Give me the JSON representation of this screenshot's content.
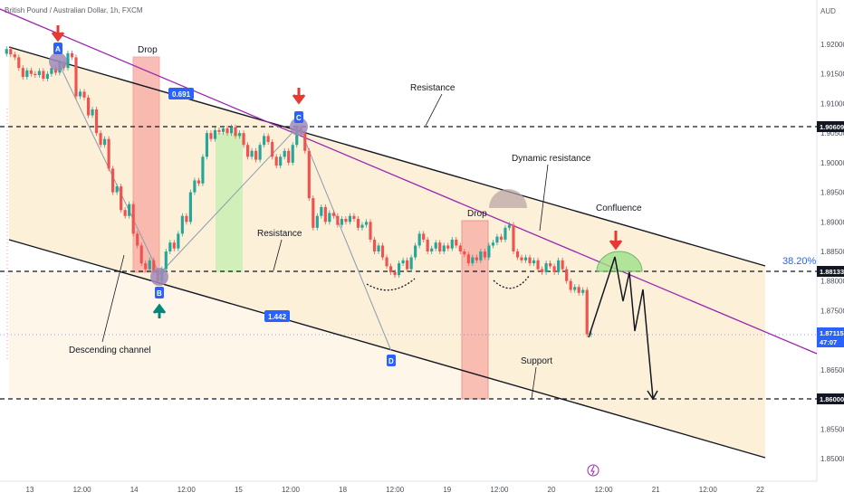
{
  "header": {
    "symbol_text": "British Pound / Australian Dollar, 1h, FXCM",
    "currency": "AUD"
  },
  "chart_data": {
    "type": "candlestick",
    "title": "British Pound / Australian Dollar, 1h, FXCM",
    "y_unit": "AUD",
    "ylim": [
      1.8462,
      1.9262
    ],
    "grid": false,
    "x_tick_labels": [
      "13",
      "12:00",
      "14",
      "12:00",
      "15",
      "12:00",
      "18",
      "12:00",
      "19",
      "12:00",
      "20",
      "12:00",
      "21",
      "12:00",
      "22"
    ],
    "y_tick_labels": [
      "1.92000",
      "1.91500",
      "1.91000",
      "1.90500",
      "1.90000",
      "1.89500",
      "1.89000",
      "1.88500",
      "1.88000",
      "1.87500",
      "1.87000",
      "1.86500",
      "1.86000",
      "1.85500",
      "1.85000"
    ],
    "price_labels": [
      {
        "name": "resistance-level",
        "value": "1.90609",
        "color": "#131722"
      },
      {
        "name": "support-mid-level",
        "value": "1.88133",
        "color": "#131722"
      },
      {
        "name": "current-price",
        "value": "1.87115",
        "countdown": "47:07",
        "color": "#2962ff"
      },
      {
        "name": "support-level",
        "value": "1.86000",
        "color": "#131722"
      }
    ],
    "fib_label": "38.20%",
    "annotations": {
      "drop_1": "Drop",
      "drop_2": "Drop",
      "resistance_top": "Resistance",
      "resistance_mid": "Resistance",
      "dynamic_resistance": "Dynamic resistance",
      "confluence": "Confluence",
      "descending_channel": "Descending channel",
      "support": "Support"
    },
    "point_tags": [
      "A",
      "B",
      "C",
      "D"
    ],
    "ratio_tags": [
      "0.691",
      "1.442"
    ],
    "candles": [
      {
        "o": 1.9184,
        "c": 1.9192
      },
      {
        "o": 1.9192,
        "c": 1.9183
      },
      {
        "o": 1.9183,
        "c": 1.9178
      },
      {
        "o": 1.9178,
        "c": 1.916
      },
      {
        "o": 1.916,
        "c": 1.9145
      },
      {
        "o": 1.9145,
        "c": 1.9156
      },
      {
        "o": 1.9156,
        "c": 1.915
      },
      {
        "o": 1.915,
        "c": 1.9148
      },
      {
        "o": 1.9148,
        "c": 1.9155
      },
      {
        "o": 1.9155,
        "c": 1.9142
      },
      {
        "o": 1.9142,
        "c": 1.915
      },
      {
        "o": 1.915,
        "c": 1.916
      },
      {
        "o": 1.916,
        "c": 1.9152
      },
      {
        "o": 1.9152,
        "c": 1.917
      },
      {
        "o": 1.917,
        "c": 1.916
      },
      {
        "o": 1.916,
        "c": 1.9185
      },
      {
        "o": 1.9185,
        "c": 1.9178
      },
      {
        "o": 1.9178,
        "c": 1.9112
      },
      {
        "o": 1.9112,
        "c": 1.912
      },
      {
        "o": 1.912,
        "c": 1.911
      },
      {
        "o": 1.911,
        "c": 1.908
      },
      {
        "o": 1.908,
        "c": 1.909
      },
      {
        "o": 1.909,
        "c": 1.905
      },
      {
        "o": 1.905,
        "c": 1.903
      },
      {
        "o": 1.903,
        "c": 1.904
      },
      {
        "o": 1.904,
        "c": 1.899
      },
      {
        "o": 1.899,
        "c": 1.895
      },
      {
        "o": 1.895,
        "c": 1.896
      },
      {
        "o": 1.896,
        "c": 1.892
      },
      {
        "o": 1.892,
        "c": 1.891
      },
      {
        "o": 1.891,
        "c": 1.893
      },
      {
        "o": 1.893,
        "c": 1.888
      },
      {
        "o": 1.888,
        "c": 1.886
      },
      {
        "o": 1.886,
        "c": 1.883
      },
      {
        "o": 1.883,
        "c": 1.882
      },
      {
        "o": 1.882,
        "c": 1.8835
      },
      {
        "o": 1.8835,
        "c": 1.8815
      },
      {
        "o": 1.8815,
        "c": 1.88
      },
      {
        "o": 1.88,
        "c": 1.882
      },
      {
        "o": 1.882,
        "c": 1.885
      },
      {
        "o": 1.885,
        "c": 1.8865
      },
      {
        "o": 1.8865,
        "c": 1.8855
      },
      {
        "o": 1.8855,
        "c": 1.888
      },
      {
        "o": 1.888,
        "c": 1.891
      },
      {
        "o": 1.891,
        "c": 1.89
      },
      {
        "o": 1.89,
        "c": 1.895
      },
      {
        "o": 1.895,
        "c": 1.897
      },
      {
        "o": 1.897,
        "c": 1.8965
      },
      {
        "o": 1.8965,
        "c": 1.901
      },
      {
        "o": 1.901,
        "c": 1.905
      },
      {
        "o": 1.905,
        "c": 1.904
      },
      {
        "o": 1.904,
        "c": 1.9055
      },
      {
        "o": 1.9055,
        "c": 1.9052
      },
      {
        "o": 1.9052,
        "c": 1.9058
      },
      {
        "o": 1.9058,
        "c": 1.905
      },
      {
        "o": 1.905,
        "c": 1.906
      },
      {
        "o": 1.906,
        "c": 1.9045
      },
      {
        "o": 1.9045,
        "c": 1.905
      },
      {
        "o": 1.905,
        "c": 1.903
      },
      {
        "o": 1.903,
        "c": 1.901
      },
      {
        "o": 1.901,
        "c": 1.902
      },
      {
        "o": 1.902,
        "c": 1.9005
      },
      {
        "o": 1.9005,
        "c": 1.903
      },
      {
        "o": 1.903,
        "c": 1.9045
      },
      {
        "o": 1.9045,
        "c": 1.9035
      },
      {
        "o": 1.9035,
        "c": 1.901
      },
      {
        "o": 1.901,
        "c": 1.8995
      },
      {
        "o": 1.8995,
        "c": 1.901
      },
      {
        "o": 1.901,
        "c": 1.902
      },
      {
        "o": 1.902,
        "c": 1.9
      },
      {
        "o": 1.9,
        "c": 1.903
      },
      {
        "o": 1.903,
        "c": 1.9059
      },
      {
        "o": 1.9059,
        "c": 1.905
      },
      {
        "o": 1.905,
        "c": 1.902
      },
      {
        "o": 1.902,
        "c": 1.894
      },
      {
        "o": 1.894,
        "c": 1.889
      },
      {
        "o": 1.889,
        "c": 1.891
      },
      {
        "o": 1.891,
        "c": 1.8925
      },
      {
        "o": 1.8925,
        "c": 1.89
      },
      {
        "o": 1.89,
        "c": 1.8915
      },
      {
        "o": 1.8915,
        "c": 1.891
      },
      {
        "o": 1.891,
        "c": 1.8895
      },
      {
        "o": 1.8895,
        "c": 1.8905
      },
      {
        "o": 1.8905,
        "c": 1.89
      },
      {
        "o": 1.89,
        "c": 1.891
      },
      {
        "o": 1.891,
        "c": 1.8905
      },
      {
        "o": 1.8905,
        "c": 1.889
      },
      {
        "o": 1.889,
        "c": 1.8895
      },
      {
        "o": 1.8895,
        "c": 1.89
      },
      {
        "o": 1.89,
        "c": 1.887
      },
      {
        "o": 1.887,
        "c": 1.885
      },
      {
        "o": 1.885,
        "c": 1.886
      },
      {
        "o": 1.886,
        "c": 1.884
      },
      {
        "o": 1.884,
        "c": 1.8825
      },
      {
        "o": 1.8825,
        "c": 1.8815
      },
      {
        "o": 1.8815,
        "c": 1.881
      },
      {
        "o": 1.881,
        "c": 1.883
      },
      {
        "o": 1.883,
        "c": 1.8835
      },
      {
        "o": 1.8835,
        "c": 1.882
      },
      {
        "o": 1.882,
        "c": 1.884
      },
      {
        "o": 1.884,
        "c": 1.886
      },
      {
        "o": 1.886,
        "c": 1.888
      },
      {
        "o": 1.888,
        "c": 1.887
      },
      {
        "o": 1.887,
        "c": 1.885
      },
      {
        "o": 1.885,
        "c": 1.8855
      },
      {
        "o": 1.8855,
        "c": 1.8865
      },
      {
        "o": 1.8865,
        "c": 1.885
      },
      {
        "o": 1.885,
        "c": 1.886
      },
      {
        "o": 1.886,
        "c": 1.8855
      },
      {
        "o": 1.8855,
        "c": 1.887
      },
      {
        "o": 1.887,
        "c": 1.886
      },
      {
        "o": 1.886,
        "c": 1.885
      },
      {
        "o": 1.885,
        "c": 1.8845
      },
      {
        "o": 1.8845,
        "c": 1.883
      },
      {
        "o": 1.883,
        "c": 1.884
      },
      {
        "o": 1.884,
        "c": 1.8835
      },
      {
        "o": 1.8835,
        "c": 1.885
      },
      {
        "o": 1.885,
        "c": 1.884
      },
      {
        "o": 1.884,
        "c": 1.886
      },
      {
        "o": 1.886,
        "c": 1.8865
      },
      {
        "o": 1.8865,
        "c": 1.8875
      },
      {
        "o": 1.8875,
        "c": 1.887
      },
      {
        "o": 1.887,
        "c": 1.889
      },
      {
        "o": 1.889,
        "c": 1.8895
      },
      {
        "o": 1.8895,
        "c": 1.885
      },
      {
        "o": 1.885,
        "c": 1.884
      },
      {
        "o": 1.884,
        "c": 1.8835
      },
      {
        "o": 1.8835,
        "c": 1.884
      },
      {
        "o": 1.884,
        "c": 1.883
      },
      {
        "o": 1.883,
        "c": 1.8835
      },
      {
        "o": 1.8835,
        "c": 1.882
      },
      {
        "o": 1.882,
        "c": 1.8815
      },
      {
        "o": 1.8815,
        "c": 1.883
      },
      {
        "o": 1.883,
        "c": 1.8825
      },
      {
        "o": 1.8825,
        "c": 1.8815
      },
      {
        "o": 1.8815,
        "c": 1.8835
      },
      {
        "o": 1.8835,
        "c": 1.882
      },
      {
        "o": 1.882,
        "c": 1.88
      },
      {
        "o": 1.88,
        "c": 1.8785
      },
      {
        "o": 1.8785,
        "c": 1.879
      },
      {
        "o": 1.879,
        "c": 1.878
      },
      {
        "o": 1.878,
        "c": 1.8785
      },
      {
        "o": 1.8785,
        "c": 1.871
      },
      {
        "o": 1.871,
        "c": 1.87115
      }
    ]
  }
}
